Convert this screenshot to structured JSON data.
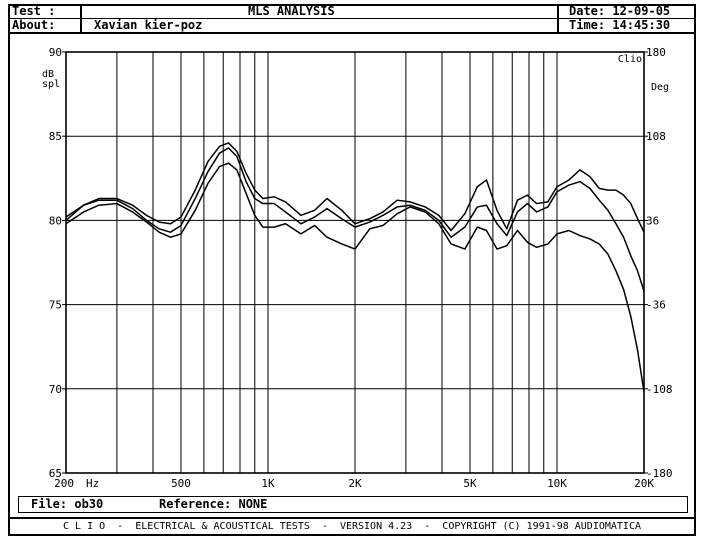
{
  "header": {
    "test_label": "Test :",
    "title": "MLS ANALYSIS",
    "date": "Date: 12-09-05",
    "about_label": "About:",
    "about_text": "Xavian kier-poz",
    "time": "Time: 14:45:30"
  },
  "file_bar": {
    "file": "File: ob30",
    "reference": "Reference: NONE"
  },
  "footer": {
    "text": "C L I O  -  ELECTRICAL & ACOUSTICAL TESTS  -  VERSION 4.23  -  COPYRIGHT (C) 1991-98 AUDIOMATICA"
  },
  "chart_data": {
    "type": "line",
    "x_scale": "log",
    "xlim": [
      200,
      20000
    ],
    "ylim": [
      65,
      90
    ],
    "y2lim": [
      -180,
      180
    ],
    "ylabel": "dB\nspl",
    "y2label": "Deg",
    "xunit": "Hz",
    "corner_label": "Clio",
    "grid": true,
    "x_ticks": [
      {
        "v": 200,
        "t": "200"
      },
      {
        "v": 500,
        "t": "500"
      },
      {
        "v": 1000,
        "t": "1K"
      },
      {
        "v": 2000,
        "t": "2K"
      },
      {
        "v": 5000,
        "t": "5K"
      },
      {
        "v": 10000,
        "t": "10K"
      },
      {
        "v": 20000,
        "t": "20K"
      }
    ],
    "x_gridlines": [
      300,
      400,
      500,
      600,
      700,
      800,
      900,
      1000,
      2000,
      3000,
      4000,
      5000,
      6000,
      7000,
      8000,
      9000,
      10000
    ],
    "y_ticks": [
      {
        "v": 90,
        "t": "90"
      },
      {
        "v": 85,
        "t": "85"
      },
      {
        "v": 80,
        "t": "80"
      },
      {
        "v": 75,
        "t": "75"
      },
      {
        "v": 70,
        "t": "70"
      },
      {
        "v": 65,
        "t": "65"
      }
    ],
    "y2_ticks": [
      {
        "v": 180,
        "t": "180"
      },
      {
        "v": 108,
        "t": "108"
      },
      {
        "v": 36,
        "t": "36"
      },
      {
        "v": -36,
        "t": "-36"
      },
      {
        "v": -108,
        "t": "-108"
      },
      {
        "v": -180,
        "t": "-180"
      }
    ],
    "series": [
      {
        "x": [
          200,
          230,
          260,
          300,
          340,
          380,
          420,
          460,
          500,
          560,
          620,
          680,
          730,
          780,
          840,
          900,
          960,
          1050,
          1150,
          1300,
          1450,
          1600,
          1800,
          2000,
          2250,
          2500,
          2800,
          3100,
          3500,
          3900,
          4300,
          4800,
          5300,
          5700,
          6200,
          6700,
          7300,
          7900,
          8500,
          9300,
          10000,
          11000,
          12000,
          13000,
          14000,
          15000,
          16000,
          17000,
          18000,
          19000,
          20000
        ],
        "y": [
          80.2,
          80.9,
          81.3,
          81.3,
          80.9,
          80.3,
          79.9,
          79.8,
          80.2,
          81.8,
          83.5,
          84.4,
          84.6,
          84.1,
          82.8,
          81.8,
          81.3,
          81.4,
          81.1,
          80.3,
          80.6,
          81.3,
          80.6,
          79.8,
          80.1,
          80.5,
          81.2,
          81.1,
          80.8,
          80.3,
          79.4,
          80.4,
          82.0,
          82.4,
          80.6,
          79.5,
          81.2,
          81.5,
          81.0,
          81.1,
          82.0,
          82.4,
          83.0,
          82.6,
          81.9,
          81.8,
          81.8,
          81.5,
          81.0,
          80.1,
          79.3
        ]
      },
      {
        "x": [
          200,
          230,
          260,
          300,
          340,
          380,
          420,
          460,
          500,
          560,
          620,
          680,
          730,
          780,
          840,
          900,
          960,
          1050,
          1150,
          1300,
          1450,
          1600,
          1800,
          2000,
          2250,
          2500,
          2800,
          3100,
          3500,
          3900,
          4300,
          4800,
          5300,
          5700,
          6200,
          6700,
          7300,
          7900,
          8500,
          9300,
          10000,
          11000,
          12000,
          13000,
          14000,
          15000,
          16000,
          17000,
          18000,
          19000,
          20000
        ],
        "y": [
          80.0,
          80.9,
          81.2,
          81.2,
          80.7,
          80.0,
          79.5,
          79.3,
          79.7,
          81.3,
          82.9,
          84.0,
          84.3,
          83.8,
          82.3,
          81.3,
          81.0,
          81.0,
          80.5,
          79.8,
          80.2,
          80.7,
          80.1,
          79.6,
          79.9,
          80.3,
          80.8,
          80.9,
          80.6,
          80.0,
          79.0,
          79.6,
          80.8,
          80.9,
          79.8,
          79.1,
          80.5,
          81.0,
          80.5,
          80.8,
          81.7,
          82.1,
          82.3,
          81.9,
          81.2,
          80.6,
          79.8,
          79.0,
          77.9,
          77.0,
          75.8
        ]
      },
      {
        "x": [
          200,
          230,
          260,
          300,
          340,
          380,
          420,
          460,
          500,
          560,
          620,
          680,
          730,
          780,
          840,
          900,
          960,
          1050,
          1150,
          1300,
          1450,
          1600,
          1800,
          2000,
          2250,
          2500,
          2800,
          3100,
          3500,
          3900,
          4300,
          4800,
          5300,
          5700,
          6200,
          6700,
          7300,
          7900,
          8500,
          9300,
          10000,
          11000,
          12000,
          13000,
          14000,
          15000,
          16000,
          17000,
          18000,
          19000,
          20000
        ],
        "y": [
          79.8,
          80.5,
          80.9,
          81.0,
          80.5,
          79.9,
          79.3,
          79.0,
          79.2,
          80.6,
          82.2,
          83.2,
          83.4,
          83.0,
          81.6,
          80.3,
          79.6,
          79.6,
          79.8,
          79.2,
          79.7,
          79.0,
          78.6,
          78.3,
          79.5,
          79.7,
          80.4,
          80.8,
          80.5,
          79.8,
          78.6,
          78.3,
          79.6,
          79.4,
          78.3,
          78.5,
          79.4,
          78.7,
          78.4,
          78.6,
          79.2,
          79.4,
          79.1,
          78.9,
          78.6,
          78.0,
          77.0,
          75.9,
          74.3,
          72.3,
          69.8
        ]
      }
    ]
  }
}
